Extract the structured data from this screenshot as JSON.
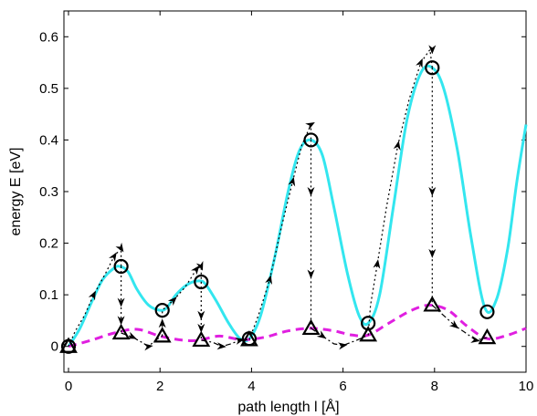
{
  "chart_data": {
    "type": "line",
    "title": "",
    "xlabel": "path length l [Å]",
    "ylabel": "energy E [eV]",
    "xlim": [
      -0.1,
      10
    ],
    "ylim": [
      -0.05,
      0.65
    ],
    "xticks": [
      0,
      2,
      4,
      6,
      8,
      10
    ],
    "yticks": [
      0,
      0.1,
      0.2,
      0.3,
      0.4,
      0.5,
      0.6
    ],
    "xtick_labels": [
      "0",
      "2",
      "4",
      "6",
      "8",
      "10"
    ],
    "ytick_labels": [
      "0",
      "0.1",
      "0.2",
      "0.3",
      "0.4",
      "0.5",
      "0.6"
    ],
    "grid": false,
    "legend": "none",
    "series": [
      {
        "style": "solid",
        "color": "#33e6ef",
        "x": [
          0.0,
          0.25,
          0.5,
          0.75,
          1.0,
          1.12,
          1.3,
          1.5,
          1.75,
          2.0,
          2.15,
          2.35,
          2.6,
          2.85,
          3.0,
          3.25,
          3.5,
          3.75,
          3.95,
          4.2,
          4.5,
          4.8,
          5.05,
          5.3,
          5.55,
          5.8,
          6.1,
          6.35,
          6.55,
          6.8,
          7.1,
          7.4,
          7.7,
          7.95,
          8.2,
          8.5,
          8.8,
          9.1,
          9.35,
          9.6,
          9.8,
          10.0
        ],
        "y": [
          0.0,
          0.035,
          0.085,
          0.13,
          0.152,
          0.155,
          0.145,
          0.11,
          0.08,
          0.07,
          0.075,
          0.1,
          0.12,
          0.127,
          0.12,
          0.085,
          0.045,
          0.015,
          0.015,
          0.06,
          0.17,
          0.3,
          0.38,
          0.4,
          0.37,
          0.27,
          0.14,
          0.06,
          0.045,
          0.1,
          0.27,
          0.44,
          0.53,
          0.54,
          0.5,
          0.38,
          0.21,
          0.075,
          0.09,
          0.19,
          0.32,
          0.43
        ]
      },
      {
        "style": "dashed",
        "color": "#e01fe0",
        "x": [
          0.0,
          0.5,
          1.0,
          1.5,
          2.0,
          2.5,
          2.85,
          3.3,
          3.8,
          4.3,
          4.8,
          5.3,
          5.8,
          6.2,
          6.55,
          7.0,
          7.5,
          7.9,
          8.3,
          8.7,
          9.15,
          9.6,
          10.0
        ],
        "y": [
          0.0,
          0.012,
          0.026,
          0.033,
          0.02,
          0.012,
          0.012,
          0.02,
          0.013,
          0.018,
          0.03,
          0.035,
          0.03,
          0.022,
          0.022,
          0.045,
          0.07,
          0.08,
          0.07,
          0.04,
          0.015,
          0.022,
          0.035
        ]
      }
    ],
    "circle_points": [
      {
        "x": 0.0,
        "y": 0.0
      },
      {
        "x": 1.15,
        "y": 0.155
      },
      {
        "x": 2.05,
        "y": 0.07
      },
      {
        "x": 2.9,
        "y": 0.125
      },
      {
        "x": 3.95,
        "y": 0.015
      },
      {
        "x": 5.3,
        "y": 0.4
      },
      {
        "x": 6.55,
        "y": 0.045
      },
      {
        "x": 7.95,
        "y": 0.54
      },
      {
        "x": 9.15,
        "y": 0.067
      }
    ],
    "triangle_points": [
      {
        "x": 0.0,
        "y": 0.0
      },
      {
        "x": 1.15,
        "y": 0.026
      },
      {
        "x": 2.05,
        "y": 0.02
      },
      {
        "x": 2.9,
        "y": 0.012
      },
      {
        "x": 3.95,
        "y": 0.013
      },
      {
        "x": 5.3,
        "y": 0.035
      },
      {
        "x": 6.55,
        "y": 0.022
      },
      {
        "x": 7.95,
        "y": 0.08
      },
      {
        "x": 9.15,
        "y": 0.017
      }
    ],
    "arrow_paths": [
      {
        "style": "dotted",
        "points": [
          [
            0.0,
            0.0
          ],
          [
            0.15,
            0.03
          ],
          [
            0.35,
            0.06
          ],
          [
            0.55,
            0.1
          ],
          [
            0.8,
            0.14
          ],
          [
            1.0,
            0.175
          ],
          [
            1.15,
            0.19
          ],
          [
            1.15,
            0.155
          ]
        ]
      },
      {
        "style": "dotted",
        "points": [
          [
            1.15,
            0.155
          ],
          [
            1.15,
            0.12
          ],
          [
            1.15,
            0.085
          ],
          [
            1.15,
            0.05
          ],
          [
            1.15,
            0.026
          ]
        ]
      },
      {
        "style": "dashdot",
        "points": [
          [
            1.15,
            0.026
          ],
          [
            1.4,
            0.018
          ],
          [
            1.6,
            0.008
          ],
          [
            1.75,
            0.0
          ],
          [
            1.9,
            0.012
          ],
          [
            2.05,
            0.02
          ]
        ]
      },
      {
        "style": "dotted",
        "points": [
          [
            2.05,
            0.02
          ],
          [
            2.05,
            0.045
          ],
          [
            2.05,
            0.07
          ],
          [
            2.3,
            0.09
          ],
          [
            2.55,
            0.115
          ],
          [
            2.8,
            0.15
          ],
          [
            2.9,
            0.155
          ],
          [
            2.9,
            0.125
          ]
        ]
      },
      {
        "style": "dotted",
        "points": [
          [
            2.9,
            0.125
          ],
          [
            2.9,
            0.09
          ],
          [
            2.9,
            0.06
          ],
          [
            2.9,
            0.035
          ],
          [
            2.9,
            0.012
          ]
        ]
      },
      {
        "style": "dashdot",
        "points": [
          [
            2.9,
            0.012
          ],
          [
            3.15,
            0.008
          ],
          [
            3.35,
            0.0
          ],
          [
            3.55,
            0.005
          ],
          [
            3.75,
            0.012
          ],
          [
            3.95,
            0.013
          ]
        ]
      },
      {
        "style": "dotted",
        "points": [
          [
            3.95,
            0.013
          ],
          [
            4.15,
            0.06
          ],
          [
            4.4,
            0.13
          ],
          [
            4.65,
            0.23
          ],
          [
            4.9,
            0.32
          ],
          [
            5.1,
            0.39
          ],
          [
            5.3,
            0.43
          ],
          [
            5.3,
            0.4
          ]
        ]
      },
      {
        "style": "dotted",
        "points": [
          [
            5.3,
            0.4
          ],
          [
            5.3,
            0.3
          ],
          [
            5.3,
            0.22
          ],
          [
            5.3,
            0.14
          ],
          [
            5.3,
            0.035
          ]
        ]
      },
      {
        "style": "dashdot",
        "points": [
          [
            5.3,
            0.035
          ],
          [
            5.55,
            0.02
          ],
          [
            5.8,
            0.005
          ],
          [
            6.0,
            0.002
          ],
          [
            6.3,
            0.012
          ],
          [
            6.55,
            0.022
          ]
        ]
      },
      {
        "style": "dotted",
        "points": [
          [
            6.55,
            0.022
          ],
          [
            6.6,
            0.08
          ],
          [
            6.75,
            0.16
          ],
          [
            6.95,
            0.27
          ],
          [
            7.2,
            0.39
          ],
          [
            7.45,
            0.48
          ],
          [
            7.7,
            0.55
          ],
          [
            7.9,
            0.575
          ],
          [
            7.95,
            0.54
          ]
        ]
      },
      {
        "style": "dotted",
        "points": [
          [
            7.95,
            0.54
          ],
          [
            7.95,
            0.42
          ],
          [
            7.95,
            0.3
          ],
          [
            7.95,
            0.18
          ],
          [
            7.95,
            0.08
          ]
        ]
      },
      {
        "style": "dashdot",
        "points": [
          [
            7.95,
            0.08
          ],
          [
            8.2,
            0.06
          ],
          [
            8.45,
            0.04
          ],
          [
            8.7,
            0.025
          ],
          [
            8.9,
            0.012
          ],
          [
            9.15,
            0.017
          ]
        ]
      }
    ],
    "arrow_markers": [
      {
        "x": 0.55,
        "y": 0.1
      },
      {
        "x": 1.0,
        "y": 0.175
      },
      {
        "x": 1.15,
        "y": 0.19
      },
      {
        "x": 1.15,
        "y": 0.085
      },
      {
        "x": 1.15,
        "y": 0.05
      },
      {
        "x": 1.4,
        "y": 0.018
      },
      {
        "x": 1.75,
        "y": 0.0
      },
      {
        "x": 2.05,
        "y": 0.045
      },
      {
        "x": 2.3,
        "y": 0.09
      },
      {
        "x": 2.8,
        "y": 0.15
      },
      {
        "x": 2.9,
        "y": 0.155
      },
      {
        "x": 2.9,
        "y": 0.06
      },
      {
        "x": 2.9,
        "y": 0.035
      },
      {
        "x": 3.35,
        "y": 0.0
      },
      {
        "x": 3.75,
        "y": 0.012
      },
      {
        "x": 4.4,
        "y": 0.13
      },
      {
        "x": 4.9,
        "y": 0.32
      },
      {
        "x": 5.3,
        "y": 0.43
      },
      {
        "x": 5.3,
        "y": 0.3
      },
      {
        "x": 5.3,
        "y": 0.14
      },
      {
        "x": 5.55,
        "y": 0.02
      },
      {
        "x": 6.0,
        "y": 0.002
      },
      {
        "x": 6.75,
        "y": 0.16
      },
      {
        "x": 7.2,
        "y": 0.39
      },
      {
        "x": 7.7,
        "y": 0.55
      },
      {
        "x": 7.95,
        "y": 0.575
      },
      {
        "x": 7.95,
        "y": 0.3
      },
      {
        "x": 7.95,
        "y": 0.18
      },
      {
        "x": 8.45,
        "y": 0.04
      },
      {
        "x": 8.9,
        "y": 0.012
      }
    ]
  }
}
